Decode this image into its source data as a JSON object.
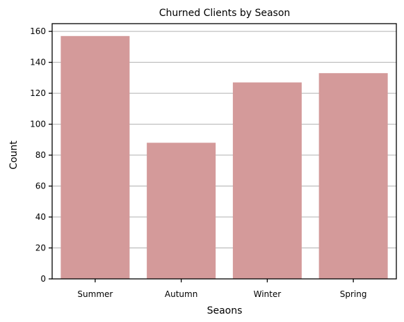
{
  "chart_data": {
    "type": "bar",
    "title": "Churned Clients by Season",
    "xlabel": "Seaons",
    "ylabel": "Count",
    "categories": [
      "Summer",
      "Autumn",
      "Winter",
      "Spring"
    ],
    "values": [
      157,
      88,
      127,
      133
    ],
    "ylim": [
      0,
      165
    ],
    "yticks": [
      0,
      20,
      40,
      60,
      80,
      100,
      120,
      140,
      160
    ],
    "grid": "horizontal",
    "bar_color": "#d49a9a"
  }
}
